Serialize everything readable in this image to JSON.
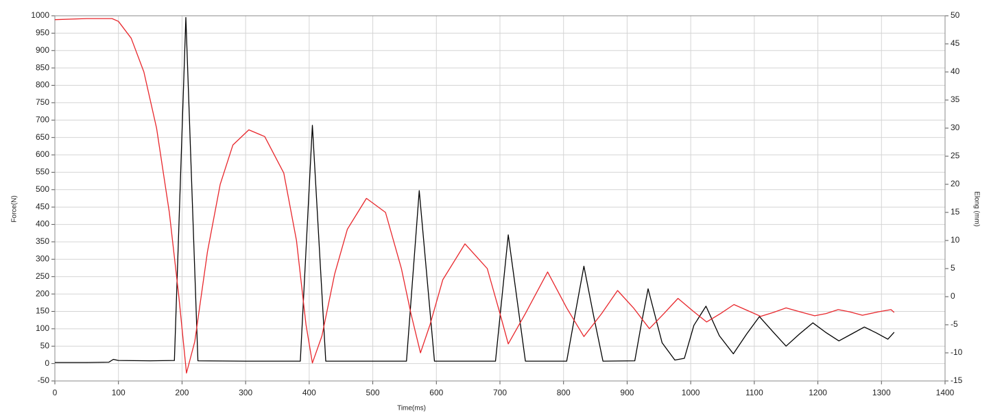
{
  "chart_data": {
    "type": "line",
    "xlabel": "Time(ms)",
    "ylabel": "Force(N)",
    "y2label": "Elong (mm)",
    "xlim": [
      0,
      1400
    ],
    "xticks": [
      0,
      100,
      200,
      300,
      400,
      500,
      600,
      700,
      800,
      900,
      1000,
      1100,
      1200,
      1300,
      1400
    ],
    "ylim": [
      -50,
      1000
    ],
    "yticks": [
      -50,
      0,
      50,
      100,
      150,
      200,
      250,
      300,
      350,
      400,
      450,
      500,
      550,
      600,
      650,
      700,
      750,
      800,
      850,
      900,
      950,
      1000
    ],
    "y2lim": [
      -15,
      50
    ],
    "y2ticks": [
      -15,
      -10,
      -5,
      0,
      5,
      10,
      15,
      20,
      25,
      30,
      35,
      40,
      45,
      50
    ],
    "grid": true,
    "series": [
      {
        "name": "Force",
        "color": "#000000",
        "x": [
          0,
          50,
          85,
          92,
          100,
          150,
          188,
          206,
          225,
          300,
          386,
          405,
          426,
          500,
          553,
          573,
          597,
          650,
          693,
          713,
          740,
          805,
          818,
          832,
          847,
          862,
          912,
          922,
          933,
          955,
          975,
          990,
          1005,
          1024,
          1045,
          1067,
          1088,
          1108,
          1130,
          1150,
          1171,
          1192,
          1212,
          1233,
          1253,
          1273,
          1292,
          1310,
          1320
        ],
        "values": [
          3,
          3,
          4,
          12,
          9,
          8,
          9,
          995,
          8,
          7,
          7,
          685,
          7,
          7,
          7,
          497,
          7,
          7,
          7,
          370,
          7,
          7,
          140,
          280,
          140,
          7,
          8,
          110,
          215,
          60,
          10,
          15,
          110,
          165,
          80,
          28,
          85,
          135,
          90,
          50,
          85,
          117,
          90,
          65,
          85,
          105,
          88,
          70,
          90
        ]
      },
      {
        "name": "Elong",
        "color": "#e8262b",
        "axis": "y2",
        "x": [
          0,
          50,
          90,
          100,
          120,
          140,
          160,
          180,
          195,
          207,
          220,
          240,
          260,
          280,
          305,
          330,
          360,
          380,
          395,
          405,
          420,
          440,
          460,
          490,
          520,
          545,
          560,
          575,
          590,
          610,
          645,
          680,
          700,
          713,
          740,
          775,
          805,
          832,
          860,
          885,
          910,
          935,
          958,
          980,
          1003,
          1025,
          1047,
          1068,
          1090,
          1110,
          1130,
          1150,
          1172,
          1195,
          1213,
          1232,
          1250,
          1270,
          1295,
          1315,
          1320
        ],
        "values": [
          49.3,
          49.5,
          49.5,
          49,
          46,
          40,
          30,
          15,
          0,
          -13.6,
          -8,
          8,
          20,
          27,
          29.7,
          28.5,
          22,
          10,
          -5,
          -11.8,
          -7,
          4,
          12,
          17.5,
          15,
          5,
          -3,
          -10,
          -5,
          3,
          9.4,
          5,
          -3,
          -8.4,
          -3,
          4.4,
          -2,
          -7.1,
          -3,
          1.1,
          -2,
          -5.7,
          -3,
          -0.3,
          -2.5,
          -4.5,
          -3,
          -1.4,
          -2.5,
          -3.5,
          -2.8,
          -2,
          -2.7,
          -3.4,
          -3,
          -2.3,
          -2.7,
          -3.3,
          -2.7,
          -2.3,
          -2.8
        ]
      }
    ]
  }
}
